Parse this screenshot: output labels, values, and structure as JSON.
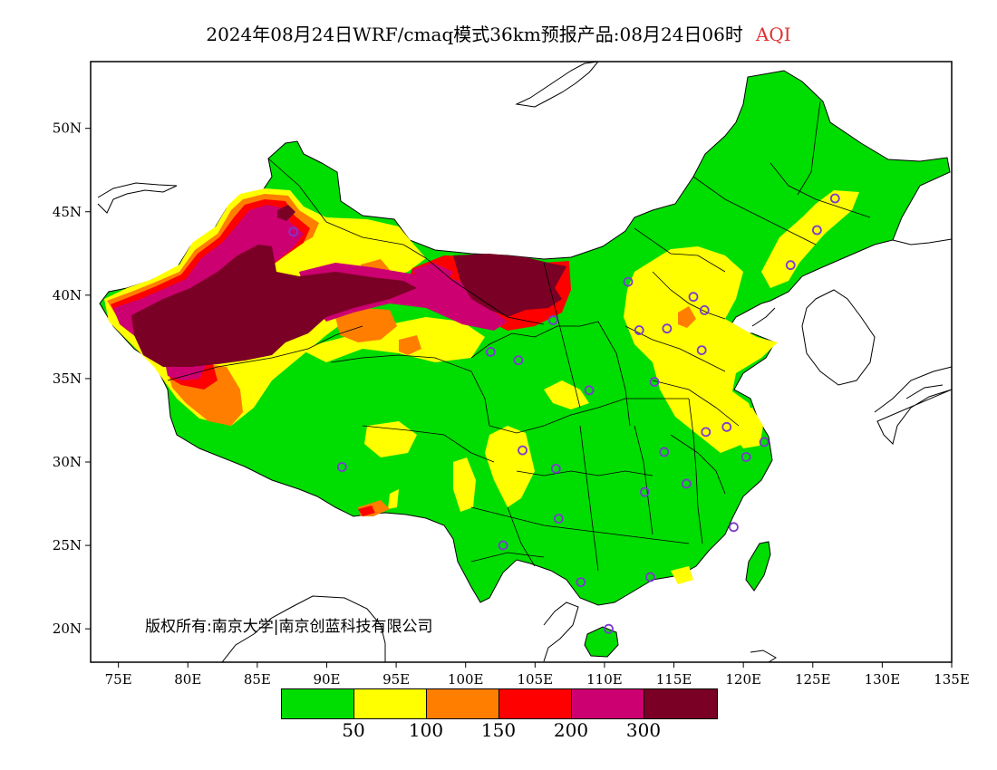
{
  "title": {
    "text": "2024年08月24日WRF/cmaq模式36km预报产品:08月24日06时",
    "variable": "AQI",
    "variable_color": "#e03030"
  },
  "map": {
    "lon_labels": [
      "75E",
      "80E",
      "85E",
      "90E",
      "95E",
      "100E",
      "105E",
      "110E",
      "115E",
      "120E",
      "125E",
      "130E",
      "135E"
    ],
    "lat_labels": [
      "50N",
      "45N",
      "40N",
      "35N",
      "30N",
      "25N",
      "20N"
    ],
    "copyright": "版权所有:南京大学|南京创蓝科技有限公司",
    "stations": [
      {
        "lon": 87.6,
        "lat": 43.8
      },
      {
        "lon": 91.1,
        "lat": 29.7
      },
      {
        "lon": 101.8,
        "lat": 36.6
      },
      {
        "lon": 103.8,
        "lat": 36.1
      },
      {
        "lon": 106.3,
        "lat": 38.5
      },
      {
        "lon": 111.7,
        "lat": 40.8
      },
      {
        "lon": 104.1,
        "lat": 30.7
      },
      {
        "lon": 106.5,
        "lat": 29.6
      },
      {
        "lon": 106.7,
        "lat": 26.6
      },
      {
        "lon": 102.7,
        "lat": 25.0
      },
      {
        "lon": 108.3,
        "lat": 22.8
      },
      {
        "lon": 110.3,
        "lat": 20.0
      },
      {
        "lon": 113.3,
        "lat": 23.1
      },
      {
        "lon": 112.9,
        "lat": 28.2
      },
      {
        "lon": 114.3,
        "lat": 30.6
      },
      {
        "lon": 115.9,
        "lat": 28.7
      },
      {
        "lon": 119.3,
        "lat": 26.1
      },
      {
        "lon": 120.2,
        "lat": 30.3
      },
      {
        "lon": 118.8,
        "lat": 32.1
      },
      {
        "lon": 117.3,
        "lat": 31.8
      },
      {
        "lon": 121.5,
        "lat": 31.2
      },
      {
        "lon": 113.6,
        "lat": 34.8
      },
      {
        "lon": 108.9,
        "lat": 34.3
      },
      {
        "lon": 112.5,
        "lat": 37.9
      },
      {
        "lon": 114.5,
        "lat": 38.0
      },
      {
        "lon": 116.4,
        "lat": 39.9
      },
      {
        "lon": 117.2,
        "lat": 39.1
      },
      {
        "lon": 117.0,
        "lat": 36.7
      },
      {
        "lon": 123.4,
        "lat": 41.8
      },
      {
        "lon": 125.3,
        "lat": 43.9
      },
      {
        "lon": 126.6,
        "lat": 45.8
      }
    ]
  },
  "legend": {
    "colors": [
      "#00dd00",
      "#ffff00",
      "#ff7e00",
      "#ff0000",
      "#cc0070",
      "#7a0025"
    ],
    "labels": [
      "50",
      "100",
      "150",
      "200",
      "300"
    ]
  }
}
